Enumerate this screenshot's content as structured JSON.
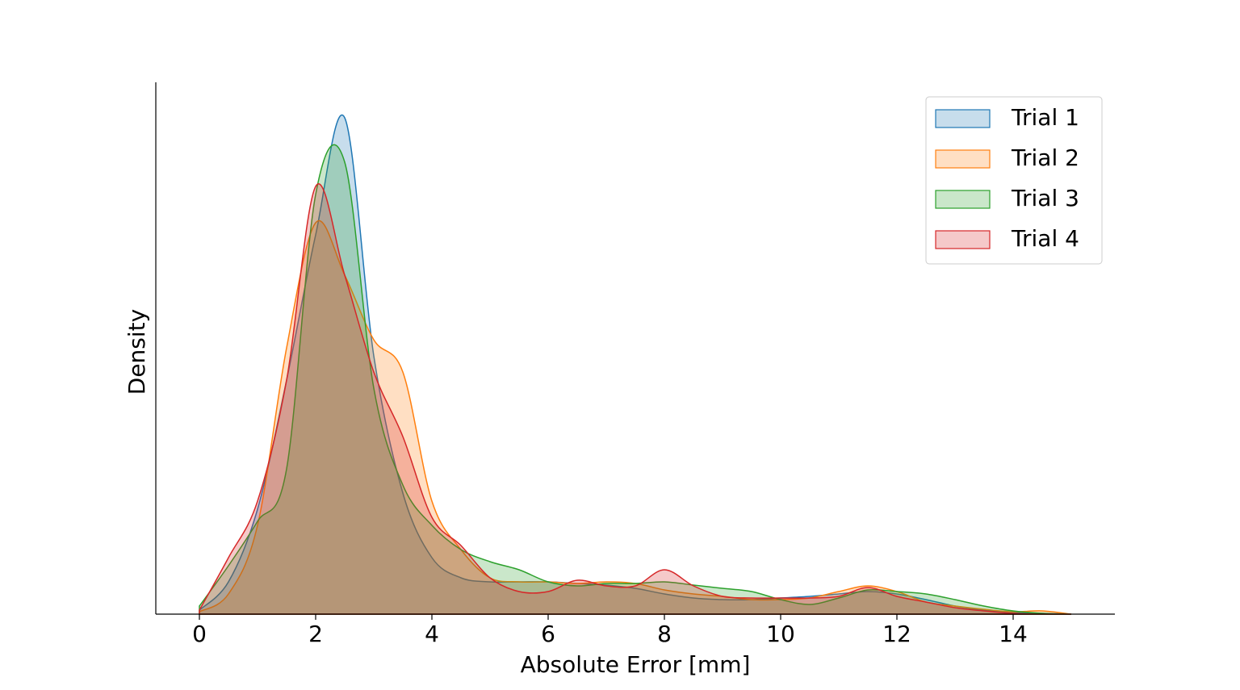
{
  "chart_data": {
    "type": "area",
    "xlabel": "Absolute Error [mm]",
    "ylabel": "Density",
    "x": [
      0,
      0.5,
      1,
      1.5,
      2,
      2.5,
      3,
      3.5,
      4,
      4.5,
      5,
      5.5,
      6,
      6.5,
      7,
      7.5,
      8,
      8.5,
      9,
      9.5,
      10,
      10.5,
      11,
      11.5,
      12,
      12.5,
      13,
      13.5,
      14,
      14.5,
      15
    ],
    "xlim": [
      -0.75,
      15.75
    ],
    "xticks": [
      0,
      2,
      4,
      6,
      8,
      10,
      12,
      14
    ],
    "ylim": [
      0,
      0.659
    ],
    "legend": "upper right",
    "series": [
      {
        "name": "Trial 1",
        "color": "#1f77b4",
        "values": [
          0.005,
          0.04,
          0.13,
          0.29,
          0.47,
          0.615,
          0.32,
          0.15,
          0.07,
          0.045,
          0.04,
          0.04,
          0.04,
          0.038,
          0.036,
          0.032,
          0.025,
          0.02,
          0.018,
          0.018,
          0.02,
          0.022,
          0.025,
          0.028,
          0.025,
          0.018,
          0.01,
          0.005,
          0.002,
          0.001,
          0
        ]
      },
      {
        "name": "Trial 2",
        "color": "#ff7f0e",
        "values": [
          0.003,
          0.025,
          0.11,
          0.33,
          0.485,
          0.42,
          0.34,
          0.3,
          0.14,
          0.08,
          0.045,
          0.04,
          0.04,
          0.038,
          0.04,
          0.038,
          0.03,
          0.025,
          0.022,
          0.018,
          0.018,
          0.02,
          0.028,
          0.035,
          0.028,
          0.015,
          0.01,
          0.006,
          0.003,
          0.004,
          0
        ]
      },
      {
        "name": "Trial 3",
        "color": "#2ca02c",
        "values": [
          0.01,
          0.06,
          0.115,
          0.18,
          0.52,
          0.56,
          0.28,
          0.16,
          0.11,
          0.08,
          0.065,
          0.055,
          0.04,
          0.035,
          0.038,
          0.038,
          0.04,
          0.036,
          0.032,
          0.028,
          0.018,
          0.012,
          0.02,
          0.03,
          0.028,
          0.025,
          0.018,
          0.01,
          0.004,
          0.001,
          0
        ]
      },
      {
        "name": "Trial 4",
        "color": "#d62728",
        "values": [
          0.005,
          0.07,
          0.14,
          0.29,
          0.53,
          0.42,
          0.3,
          0.22,
          0.12,
          0.085,
          0.045,
          0.028,
          0.028,
          0.042,
          0.035,
          0.035,
          0.055,
          0.035,
          0.022,
          0.02,
          0.02,
          0.02,
          0.022,
          0.033,
          0.022,
          0.015,
          0.008,
          0.004,
          0.001,
          0,
          0
        ]
      }
    ]
  }
}
